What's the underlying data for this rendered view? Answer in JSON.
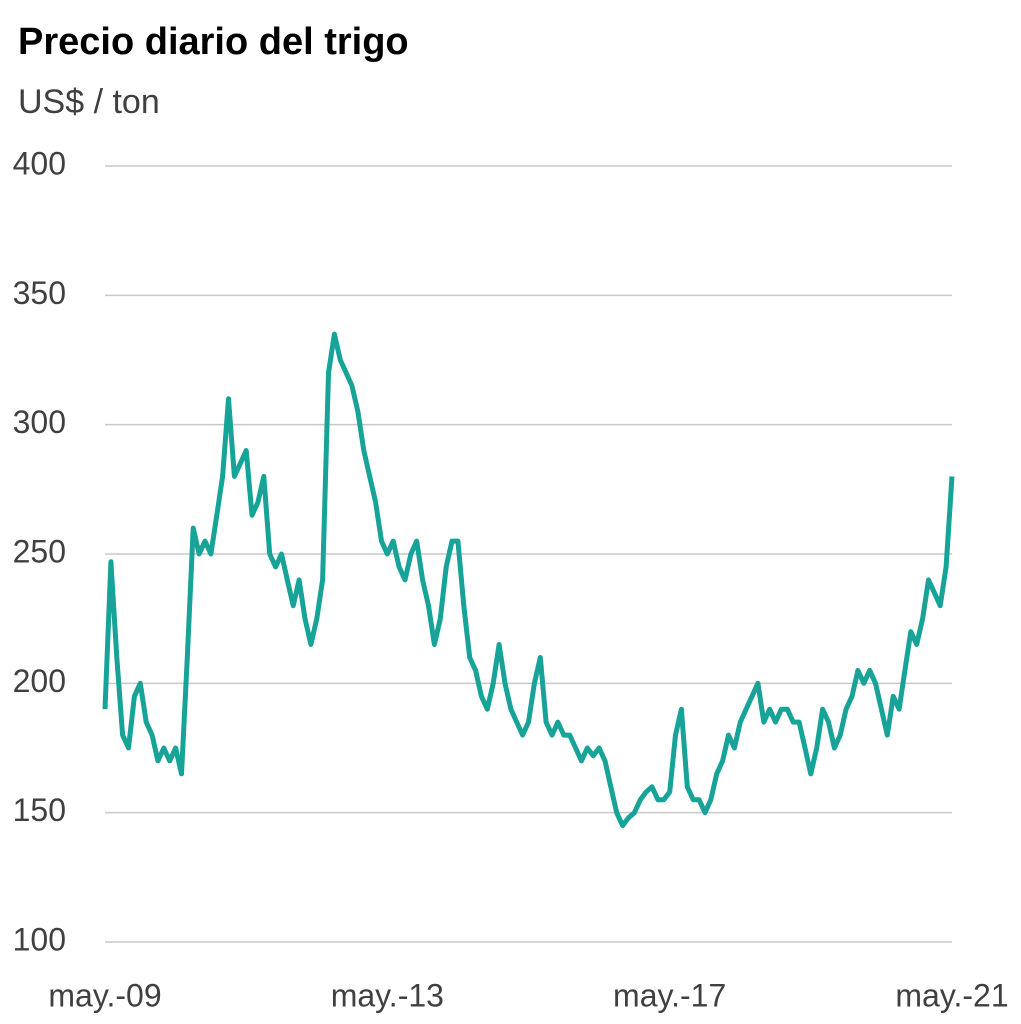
{
  "chart_data": {
    "type": "line",
    "title": "Precio diario del trigo",
    "subtitle": "US$ / ton",
    "categories": [
      "may.-09",
      null,
      null,
      null,
      null,
      null,
      null,
      null,
      null,
      null,
      null,
      null,
      null,
      null,
      null,
      null,
      null,
      null,
      null,
      null,
      null,
      null,
      null,
      null,
      null,
      null,
      null,
      null,
      null,
      null,
      null,
      null,
      null,
      null,
      null,
      null,
      null,
      null,
      null,
      null,
      null,
      null,
      null,
      null,
      null,
      null,
      null,
      null,
      "may.-13",
      null,
      null,
      null,
      null,
      null,
      null,
      null,
      null,
      null,
      null,
      null,
      null,
      null,
      null,
      null,
      null,
      null,
      null,
      null,
      null,
      null,
      null,
      null,
      null,
      null,
      null,
      null,
      null,
      null,
      null,
      null,
      null,
      null,
      null,
      null,
      null,
      null,
      null,
      null,
      null,
      null,
      null,
      null,
      null,
      null,
      null,
      null,
      "may.-17",
      null,
      null,
      null,
      null,
      null,
      null,
      null,
      null,
      null,
      null,
      null,
      null,
      null,
      null,
      null,
      null,
      null,
      null,
      null,
      null,
      null,
      null,
      null,
      null,
      null,
      null,
      null,
      null,
      null,
      null,
      null,
      null,
      null,
      null,
      null,
      null,
      null,
      null,
      null,
      null,
      null,
      null,
      null,
      null,
      null,
      null,
      null,
      "may.-21"
    ],
    "series": [
      {
        "name": "Trigo",
        "color": "#17a398",
        "values": [
          190,
          247,
          210,
          180,
          175,
          195,
          200,
          185,
          180,
          170,
          175,
          170,
          175,
          165,
          210,
          260,
          250,
          255,
          250,
          265,
          280,
          310,
          280,
          285,
          290,
          265,
          270,
          280,
          250,
          245,
          250,
          240,
          230,
          240,
          225,
          215,
          225,
          240,
          320,
          335,
          325,
          320,
          315,
          305,
          290,
          280,
          270,
          255,
          250,
          255,
          245,
          240,
          250,
          255,
          240,
          230,
          215,
          225,
          245,
          255,
          255,
          230,
          210,
          205,
          195,
          190,
          200,
          215,
          200,
          190,
          185,
          180,
          185,
          200,
          210,
          185,
          180,
          185,
          180,
          180,
          175,
          170,
          175,
          172,
          175,
          170,
          160,
          150,
          145,
          148,
          150,
          155,
          158,
          160,
          155,
          155,
          158,
          180,
          190,
          160,
          155,
          155,
          150,
          155,
          165,
          170,
          180,
          175,
          185,
          190,
          195,
          200,
          185,
          190,
          185,
          190,
          190,
          185,
          185,
          175,
          165,
          175,
          190,
          185,
          175,
          180,
          190,
          195,
          205,
          200,
          205,
          200,
          190,
          180,
          195,
          190,
          205,
          220,
          215,
          225,
          240,
          235,
          230,
          245,
          280
        ]
      }
    ],
    "ylim": [
      100,
      400
    ],
    "yticks": [
      100,
      150,
      200,
      250,
      300,
      350,
      400
    ],
    "grid": true
  }
}
